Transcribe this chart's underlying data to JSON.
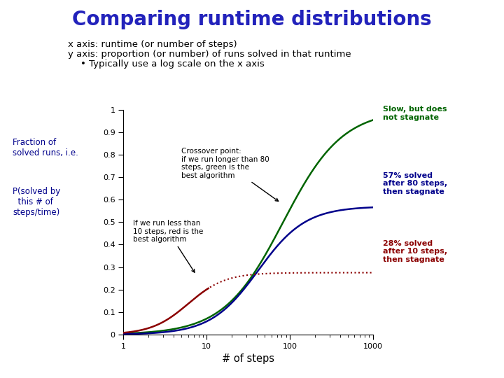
{
  "title": "Comparing runtime distributions",
  "title_color": "#2222bb",
  "title_fontsize": 20,
  "text_line1": "x axis: runtime (or number of steps)",
  "text_line2": "y axis: proportion (or number) of runs solved in that runtime",
  "text_line3": "Typically use a log scale on the x axis",
  "xlabel": "# of steps",
  "blue_plateau": 0.57,
  "blue_midpoint_log": 1.62,
  "blue_steepness": 3.5,
  "red_plateau": 0.275,
  "red_midpoint_log": 0.78,
  "red_steepness": 4.5,
  "green_midpoint_log": 1.92,
  "green_plateau": 1.0,
  "green_steepness": 2.8,
  "color_blue": "#00008B",
  "color_red": "#8B0000",
  "color_green": "#006400",
  "annot_crossover_text": "Crossover point:\nif we run longer than 80\nsteps, green is the\nbest algorithm",
  "annot_red_text": "If we run less than\n10 steps, red is the\nbest algorithm",
  "annot_right_blue_text": "57% solved\nafter 80 steps,\nthen stagnate",
  "annot_right_red_text": "28% solved\nafter 10 steps,\nthen stagnate",
  "annot_right_green_text": "Slow, but does\nnot stagnate",
  "left_label1": "Fraction of\nsolved runs, i.e.",
  "left_label2": "P(solved by\n  this # of\nsteps/time)"
}
